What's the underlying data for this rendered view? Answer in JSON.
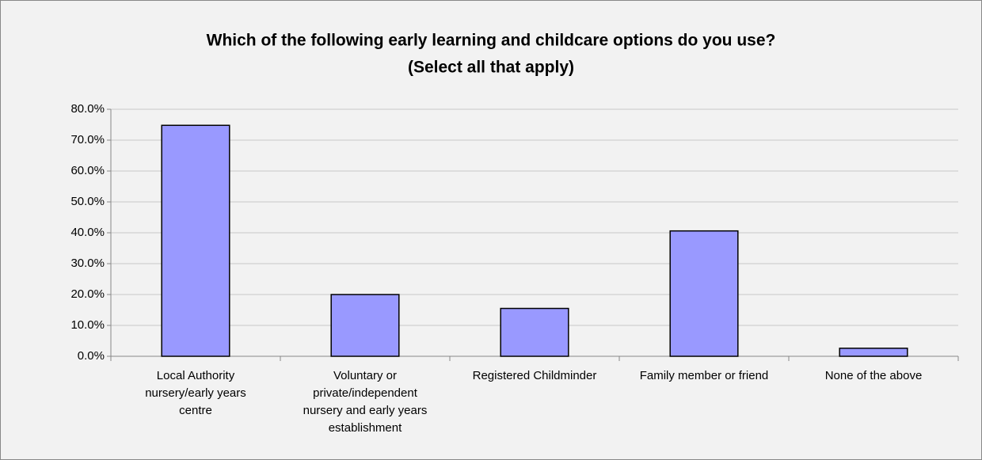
{
  "chart_data": {
    "type": "bar",
    "title_lines": [
      "Which of the following early learning and childcare options do you use?",
      "(Select all that apply)"
    ],
    "categories": [
      "Local Authority nursery/early years centre",
      "Voluntary or private/independent nursery and early years establishment",
      "Registered Childminder",
      "Family member or friend",
      "None of the above"
    ],
    "values": [
      74.8,
      20.0,
      15.5,
      40.6,
      2.6
    ],
    "color": "#9999ff",
    "ylim": [
      0,
      80
    ],
    "yticks": [
      {
        "value": 0,
        "label": "0.0%"
      },
      {
        "value": 10,
        "label": "10.0%"
      },
      {
        "value": 20,
        "label": "20.0%"
      },
      {
        "value": 30,
        "label": "30.0%"
      },
      {
        "value": 40,
        "label": "40.0%"
      },
      {
        "value": 50,
        "label": "50.0%"
      },
      {
        "value": 60,
        "label": "60.0%"
      },
      {
        "value": 70,
        "label": "70.0%"
      },
      {
        "value": 80,
        "label": "80.0%"
      }
    ],
    "grid": true
  }
}
